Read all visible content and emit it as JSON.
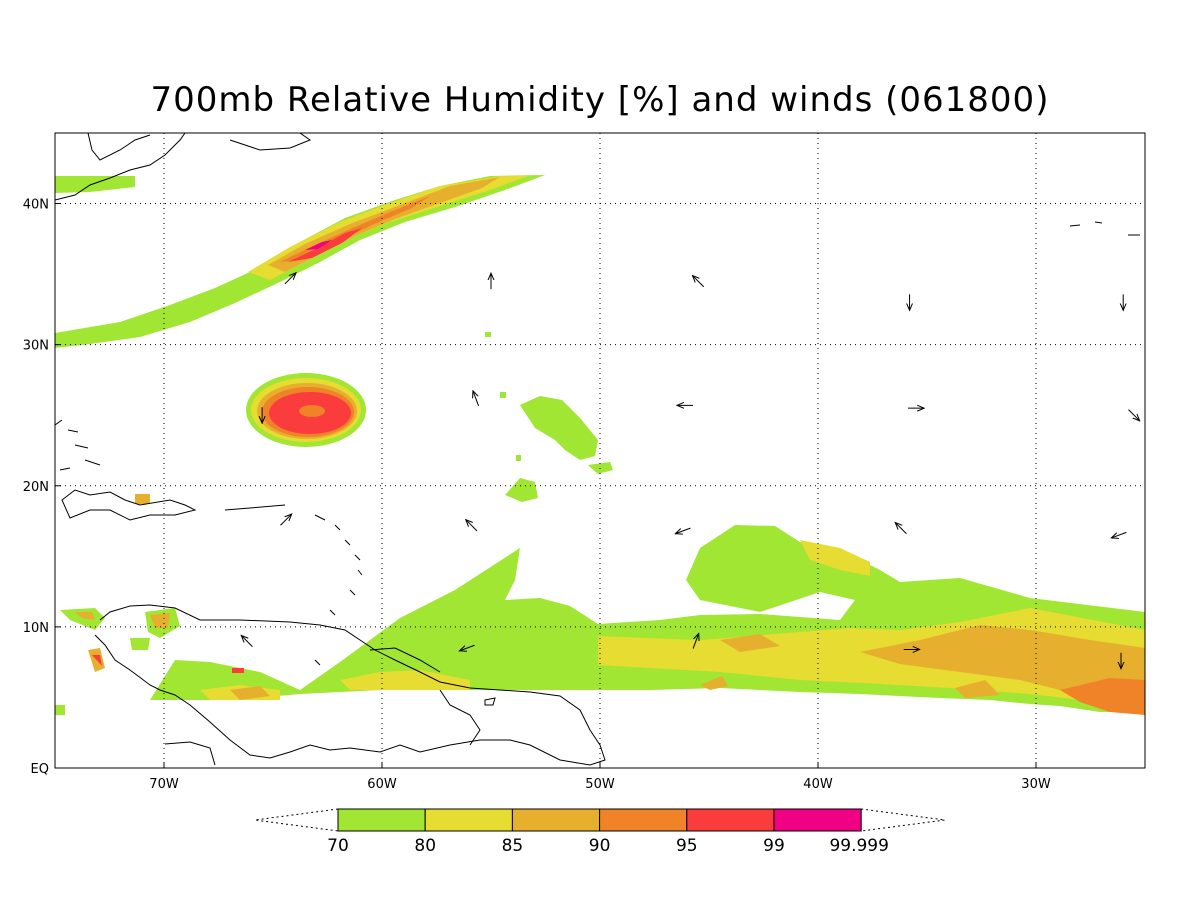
{
  "title": "700mb Relative Humidity [%] and winds (061800)",
  "map": {
    "lon_range": [
      -75,
      -25
    ],
    "lat_range": [
      0,
      45
    ],
    "lon_ticks": [
      {
        "value": -70,
        "label": "70W"
      },
      {
        "value": -60,
        "label": "60W"
      },
      {
        "value": -50,
        "label": "50W"
      },
      {
        "value": -40,
        "label": "40W"
      },
      {
        "value": -30,
        "label": "30W"
      }
    ],
    "lat_ticks": [
      {
        "value": 0,
        "label": "EQ"
      },
      {
        "value": 10,
        "label": "10N"
      },
      {
        "value": 20,
        "label": "20N"
      },
      {
        "value": 30,
        "label": "30N"
      },
      {
        "value": 40,
        "label": "40N"
      }
    ],
    "grid": "dotted"
  },
  "colorbar": {
    "levels": [
      "70",
      "80",
      "85",
      "90",
      "95",
      "99",
      "99.999"
    ],
    "colors": [
      "#a0e632",
      "#e6dc32",
      "#e6af2d",
      "#f08228",
      "#fa3c3c",
      "#f00082"
    ]
  },
  "wind_vectors": [
    {
      "lon": -64.2,
      "lat": 34.7,
      "dir": "NE"
    },
    {
      "lon": -55,
      "lat": 34.5,
      "dir": "N"
    },
    {
      "lon": -45.5,
      "lat": 34.5,
      "dir": "NW"
    },
    {
      "lon": -35.8,
      "lat": 33.0,
      "dir": "S"
    },
    {
      "lon": -26,
      "lat": 33.0,
      "dir": "S"
    },
    {
      "lon": -55.7,
      "lat": 26.2,
      "dir": "NNW"
    },
    {
      "lon": -46.1,
      "lat": 25.7,
      "dir": "W"
    },
    {
      "lon": -35.5,
      "lat": 25.5,
      "dir": "E"
    },
    {
      "lon": -25.5,
      "lat": 25.0,
      "dir": "SE"
    },
    {
      "lon": -65.5,
      "lat": 25.0,
      "dir": "S"
    },
    {
      "lon": -64.4,
      "lat": 17.6,
      "dir": "NE"
    },
    {
      "lon": -55.9,
      "lat": 17.2,
      "dir": "NW"
    },
    {
      "lon": -46.2,
      "lat": 16.8,
      "dir": "WSW"
    },
    {
      "lon": -36.2,
      "lat": 17.0,
      "dir": "NW"
    },
    {
      "lon": -26.2,
      "lat": 16.5,
      "dir": "WSW"
    },
    {
      "lon": -66.2,
      "lat": 9.0,
      "dir": "NW"
    },
    {
      "lon": -56.1,
      "lat": 8.5,
      "dir": "WSW"
    },
    {
      "lon": -45.6,
      "lat": 9.0,
      "dir": "NNE"
    },
    {
      "lon": -35.7,
      "lat": 8.4,
      "dir": "E"
    },
    {
      "lon": -26.1,
      "lat": 7.6,
      "dir": "S"
    }
  ]
}
